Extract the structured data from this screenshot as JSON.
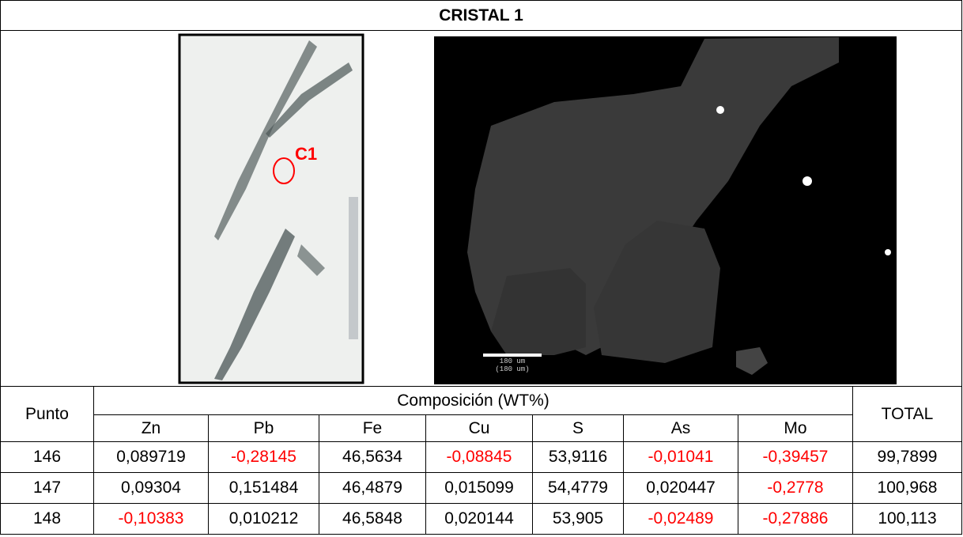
{
  "header": {
    "title": "CRISTAL 1"
  },
  "images": {
    "photo": {
      "label": "C1"
    },
    "sem": {
      "scale_bar": [
        "180 um",
        "(180 um)"
      ]
    }
  },
  "table": {
    "row_header": "Punto",
    "group_header": "Composición (WT%)",
    "total_header": "TOTAL",
    "columns": [
      "Zn",
      "Pb",
      "Fe",
      "Cu",
      "S",
      "As",
      "Mo"
    ],
    "rows": [
      {
        "punto": "146",
        "values": [
          "0,089719",
          "-0,28145",
          "46,5634",
          "-0,08845",
          "53,9116",
          "-0,01041",
          "-0,39457"
        ],
        "total": "99,7899"
      },
      {
        "punto": "147",
        "values": [
          "0,09304",
          "0,151484",
          "46,4879",
          "0,015099",
          "54,4779",
          "0,020447",
          "-0,2778"
        ],
        "total": "100,968"
      },
      {
        "punto": "148",
        "values": [
          "-0,10383",
          "0,010212",
          "46,5848",
          "0,020144",
          "53,905",
          "-0,02489",
          "-0,27886"
        ],
        "total": "100,113"
      }
    ]
  }
}
